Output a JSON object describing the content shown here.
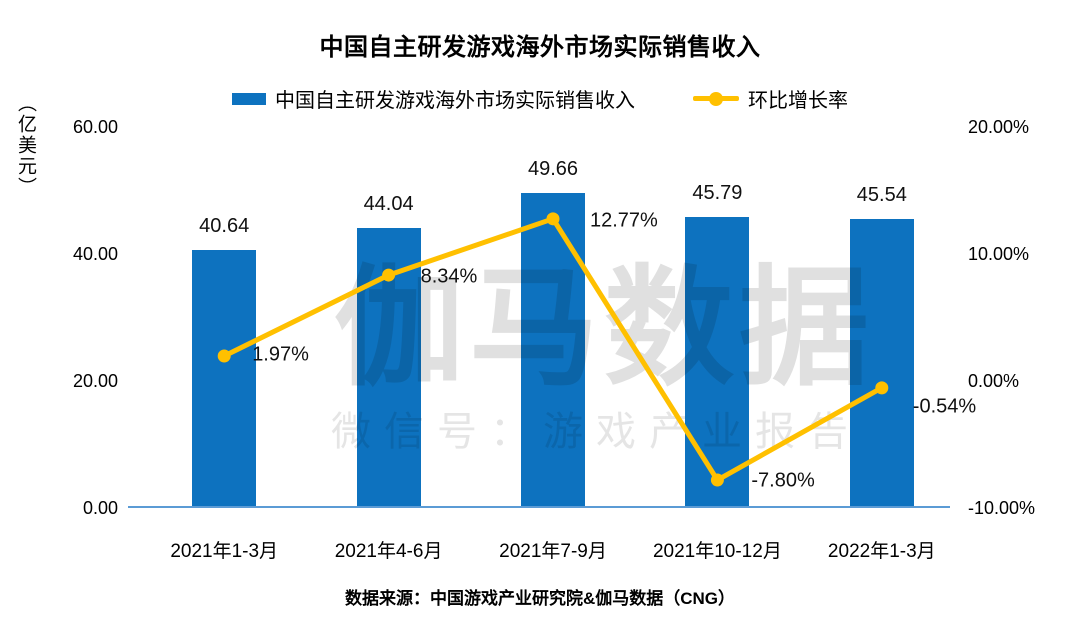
{
  "title": "中国自主研发游戏海外市场实际销售收入",
  "legend": {
    "revenue_label": "中国自主研发游戏海外市场实际销售收入",
    "growth_label": "环比增长率"
  },
  "watermark": {
    "line1": "伽马数据",
    "line2": "微信号：游戏产业报告"
  },
  "source_note": "数据来源：中国游戏产业研究院&伽马数据（CNG）",
  "colors": {
    "bar": "#0d72bf",
    "line": "#ffc000",
    "axis_line": "#5b9bd5"
  },
  "chart_data": {
    "type": "bar",
    "title": "中国自主研发游戏海外市场实际销售收入",
    "categories": [
      "2021年1-3月",
      "2021年4-6月",
      "2021年7-9月",
      "2021年10-12月",
      "2022年1-3月"
    ],
    "series": [
      {
        "name": "中国自主研发游戏海外市场实际销售收入",
        "type": "bar",
        "axis": "left",
        "values": [
          40.64,
          44.04,
          49.66,
          45.79,
          45.54
        ],
        "labels": [
          "40.64",
          "44.04",
          "49.66",
          "45.79",
          "45.54"
        ],
        "color": "#0d72bf"
      },
      {
        "name": "环比增长率",
        "type": "line",
        "axis": "right",
        "values": [
          1.97,
          8.34,
          12.77,
          -7.8,
          -0.54
        ],
        "labels": [
          "1.97%",
          "8.34%",
          "12.77%",
          "-7.80%",
          "-0.54%"
        ],
        "color": "#ffc000"
      }
    ],
    "left_axis": {
      "title": "（亿美元）",
      "min": 0,
      "max": 60,
      "ticks": [
        "60.00",
        "40.00",
        "20.00",
        "0.00"
      ]
    },
    "right_axis": {
      "min": -10,
      "max": 20,
      "ticks": [
        "20.00%",
        "10.00%",
        "0.00%",
        "-10.00%"
      ]
    },
    "grid": false,
    "legend_position": "top"
  }
}
